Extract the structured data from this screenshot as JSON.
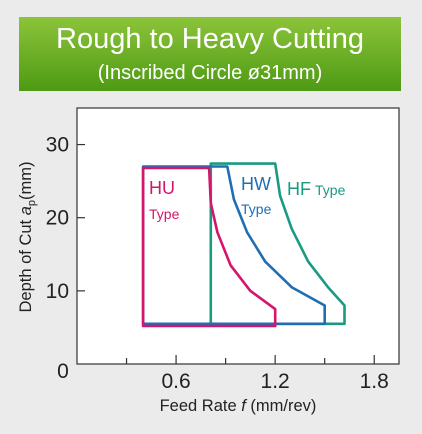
{
  "header": {
    "title": "Rough to Heavy Cutting",
    "subtitle": "(Inscribed Circle ø31mm)"
  },
  "chart_data": {
    "type": "area",
    "title": "Rough to Heavy Cutting",
    "subtitle": "(Inscribed Circle ø31mm)",
    "xlabel_prefix": "Feed Rate ",
    "xlabel_var": "f",
    "xlabel_suffix": " (mm/rev)",
    "ylabel_prefix": "Depth of Cut ",
    "ylabel_var": "a",
    "ylabel_sub": "p",
    "ylabel_suffix": "(mm)",
    "xlim": [
      0,
      1.95
    ],
    "ylim": [
      0,
      35
    ],
    "xticks": [
      0.6,
      1.2,
      1.8
    ],
    "xminorticks": [
      0.3,
      0.9,
      1.5
    ],
    "xtick_labels": [
      "0.6",
      "1.2",
      "1.8"
    ],
    "yticks": [
      10,
      20,
      30
    ],
    "ytick_labels": [
      "10",
      "20",
      "30"
    ],
    "origin_label": "0",
    "grid": false,
    "series": [
      {
        "name": "HF",
        "label_main": "HF",
        "label_sub": "Type",
        "color": "#1a9a82",
        "outline": [
          [
            0.81,
            5.5
          ],
          [
            1.62,
            5.5
          ],
          [
            1.62,
            8.0
          ],
          [
            1.52,
            10.5
          ],
          [
            1.4,
            14.0
          ],
          [
            1.3,
            18.5
          ],
          [
            1.23,
            23.0
          ],
          [
            1.2,
            27.4
          ],
          [
            0.81,
            27.4
          ]
        ]
      },
      {
        "name": "HW",
        "label_main": "HW",
        "label_sub": "Type",
        "color": "#1f6eb4",
        "outline": [
          [
            0.4,
            5.5
          ],
          [
            1.5,
            5.5
          ],
          [
            1.5,
            8.0
          ],
          [
            1.3,
            10.5
          ],
          [
            1.14,
            14.0
          ],
          [
            1.03,
            18.0
          ],
          [
            0.95,
            22.5
          ],
          [
            0.91,
            27.0
          ],
          [
            0.4,
            27.0
          ]
        ]
      },
      {
        "name": "HU",
        "label_main": "HU",
        "label_sub": "Type",
        "color": "#d4156b",
        "outline": [
          [
            0.4,
            5.2
          ],
          [
            1.2,
            5.2
          ],
          [
            1.2,
            7.5
          ],
          [
            1.05,
            10.0
          ],
          [
            0.93,
            13.5
          ],
          [
            0.85,
            18.0
          ],
          [
            0.81,
            22.0
          ],
          [
            0.8,
            26.8
          ],
          [
            0.4,
            26.8
          ]
        ]
      }
    ]
  }
}
